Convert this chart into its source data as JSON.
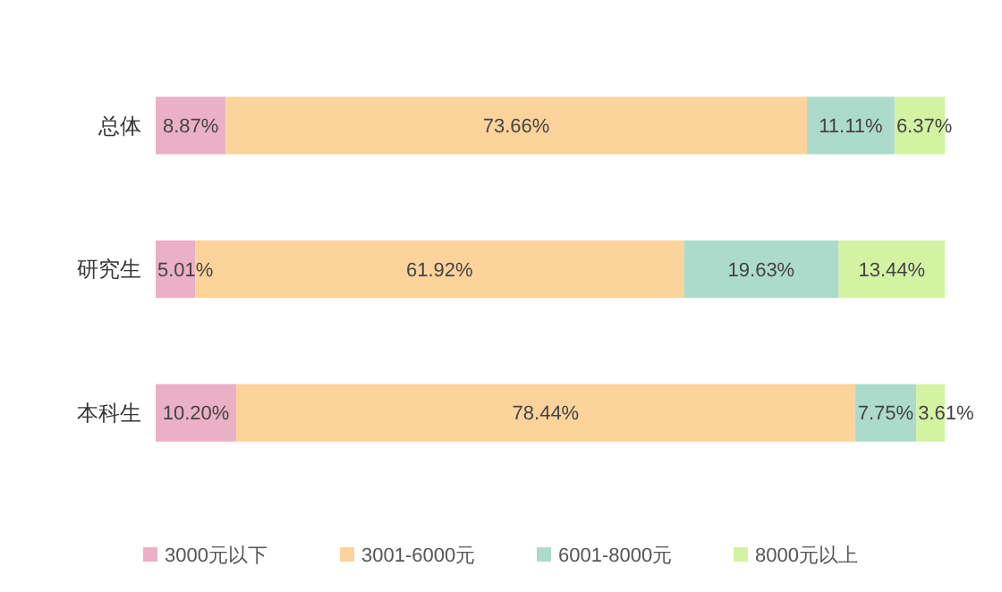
{
  "chart_data": {
    "type": "bar",
    "orientation": "horizontal",
    "stacked": true,
    "categories": [
      "总体",
      "研究生",
      "本科生"
    ],
    "series": [
      {
        "name": "3000元以下",
        "color": "#eab0c6",
        "values": [
          8.87,
          5.01,
          10.2
        ],
        "value_labels": [
          "8.87%",
          "5.01%",
          "10.20%"
        ]
      },
      {
        "name": "3001-6000元",
        "color": "#fdd39c",
        "values": [
          73.66,
          61.92,
          78.44
        ],
        "value_labels": [
          "73.66%",
          "61.92%",
          "78.44%"
        ]
      },
      {
        "name": "6001-8000元",
        "color": "#acdbcb",
        "values": [
          11.11,
          19.63,
          7.75
        ],
        "value_labels": [
          "11.11%",
          "19.63%",
          "7.75%"
        ]
      },
      {
        "name": "8000元以上",
        "color": "#d3f3a3",
        "values": [
          6.37,
          13.44,
          3.61
        ],
        "value_labels": [
          "6.37%",
          "13.44%",
          "3.61%"
        ]
      }
    ],
    "xlim": [
      0,
      100
    ],
    "tick_labels": "y",
    "legend": "bottom"
  }
}
